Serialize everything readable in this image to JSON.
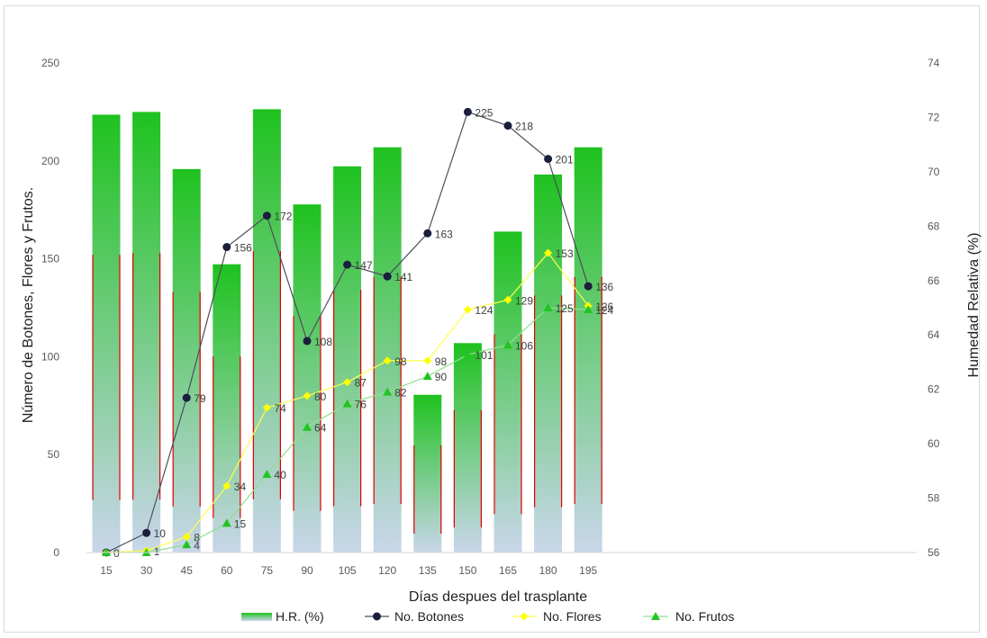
{
  "chart_data": {
    "type": "bar",
    "xlabel": "Días despues del trasplante",
    "ylabel": "Número de Botones, Flores y Frutos.",
    "y2label": "Humedad Relativa (%)",
    "categories": [
      "15",
      "30",
      "45",
      "60",
      "75",
      "90",
      "105",
      "120",
      "135",
      "150",
      "165",
      "180",
      "195"
    ],
    "ylim": [
      0,
      250
    ],
    "y_ticks": [
      "0",
      "50",
      "100",
      "150",
      "200",
      "250"
    ],
    "y2lim": [
      56,
      74
    ],
    "y2_ticks": [
      "56",
      "58",
      "60",
      "62",
      "64",
      "66",
      "68",
      "70",
      "72",
      "74"
    ],
    "grid": false,
    "legend_position": "bottom",
    "series": [
      {
        "name": "H.R. (%)",
        "type": "bar",
        "axis": "right",
        "values": [
          72.1,
          72.2,
          70.1,
          66.6,
          72.3,
          68.8,
          70.2,
          70.9,
          61.8,
          63.7,
          67.8,
          69.9,
          70.9
        ],
        "colors": {
          "top": "#1fc21f",
          "bottom": "#c9d6ea",
          "edge": "#e00000"
        }
      },
      {
        "name": "No. Botones",
        "type": "line",
        "axis": "left",
        "values": [
          0,
          10,
          79,
          156,
          172,
          108,
          147,
          141,
          163,
          225,
          218,
          201,
          136
        ],
        "labels": [
          "0",
          "10",
          "79",
          "156",
          "172",
          "108",
          "147",
          "141",
          "163",
          "225",
          "218",
          "201",
          "136"
        ],
        "colors": {
          "line": "#4d4d5c",
          "marker": "#1a1f3d"
        }
      },
      {
        "name": "No. Flores",
        "type": "line",
        "axis": "left",
        "values": [
          0,
          1,
          8,
          34,
          74,
          80,
          87,
          98,
          98,
          124,
          129,
          153,
          126
        ],
        "labels": [
          "",
          "1",
          "8",
          "34",
          "74",
          "80",
          "87",
          "98",
          "98",
          "124",
          "129",
          "153",
          "126"
        ],
        "colors": {
          "line": "#ffff4d",
          "marker": "#ffff00"
        }
      },
      {
        "name": "No. Frutos",
        "type": "line",
        "axis": "left",
        "values": [
          0,
          0,
          4,
          15,
          40,
          64,
          76,
          82,
          90,
          101,
          106,
          125,
          124
        ],
        "labels": [
          "",
          "",
          "4",
          "15",
          "40",
          "64",
          "76",
          "82",
          "90",
          "101",
          "106",
          "125",
          "124"
        ],
        "colors": {
          "line": "#8fe08f",
          "marker": "#22c422"
        }
      }
    ]
  }
}
